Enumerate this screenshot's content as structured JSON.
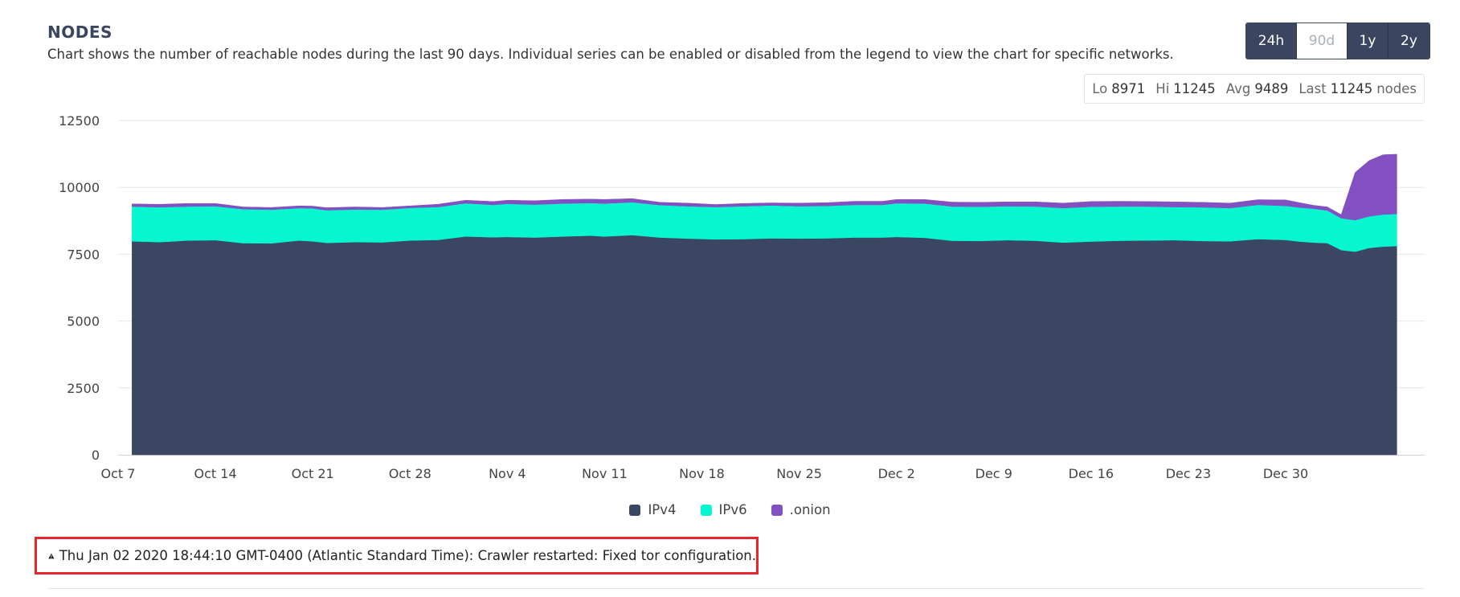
{
  "header": {
    "title": "NODES",
    "subtitle": "Chart shows the number of reachable nodes during the last 90 days. Individual series can be enabled or disabled from the legend to view the chart for specific networks."
  },
  "ranges": [
    {
      "label": "24h",
      "active": true
    },
    {
      "label": "90d",
      "active": false
    },
    {
      "label": "1y",
      "active": true
    },
    {
      "label": "2y",
      "active": true
    }
  ],
  "stats": {
    "lo_label": "Lo",
    "lo": "8971",
    "hi_label": "Hi",
    "hi": "11245",
    "avg_label": "Avg",
    "avg": "9489",
    "last_label": "Last",
    "last": "11245",
    "unit": "nodes"
  },
  "notice": {
    "icon": "warning-icon",
    "text": "Thu Jan 02 2020 18:44:10 GMT-0400 (Atlantic Standard Time): Crawler restarted: Fixed tor configuration."
  },
  "chart_data": {
    "type": "area",
    "stacked": true,
    "x_start": "Oct 7",
    "x_end_day": 94,
    "ylim": [
      0,
      12500
    ],
    "yticks": [
      0,
      2500,
      5000,
      7500,
      10000,
      12500
    ],
    "xticks": [
      {
        "label": "Oct 7",
        "day": 0
      },
      {
        "label": "Oct 14",
        "day": 7
      },
      {
        "label": "Oct 21",
        "day": 14
      },
      {
        "label": "Oct 28",
        "day": 21
      },
      {
        "label": "Nov 4",
        "day": 28
      },
      {
        "label": "Nov 11",
        "day": 35
      },
      {
        "label": "Nov 18",
        "day": 42
      },
      {
        "label": "Nov 25",
        "day": 49
      },
      {
        "label": "Dec 2",
        "day": 56
      },
      {
        "label": "Dec 9",
        "day": 63
      },
      {
        "label": "Dec 16",
        "day": 70
      },
      {
        "label": "Dec 23",
        "day": 77
      },
      {
        "label": "Dec 30",
        "day": 84
      }
    ],
    "grid": true,
    "legend_position": "bottom-center",
    "x": [
      1,
      3,
      5,
      7,
      9,
      11,
      13,
      14,
      15,
      17,
      19,
      21,
      23,
      25,
      27,
      28,
      30,
      32,
      34,
      35,
      37,
      39,
      41,
      43,
      45,
      47,
      49,
      51,
      53,
      55,
      56,
      58,
      60,
      62,
      64,
      66,
      68,
      70,
      72,
      74,
      76,
      78,
      80,
      82,
      84,
      85,
      86,
      87,
      88,
      89,
      90,
      91,
      92
    ],
    "series": [
      {
        "name": "IPv4",
        "color": "#3b4762",
        "values": [
          7970,
          7940,
          8000,
          8010,
          7900,
          7890,
          8000,
          7970,
          7910,
          7940,
          7930,
          8000,
          8020,
          8150,
          8120,
          8130,
          8110,
          8150,
          8180,
          8150,
          8200,
          8110,
          8070,
          8040,
          8050,
          8080,
          8070,
          8080,
          8110,
          8110,
          8130,
          8100,
          7990,
          7980,
          8010,
          7990,
          7920,
          7960,
          7990,
          8000,
          8010,
          7980,
          7970,
          8050,
          8020,
          7960,
          7920,
          7900,
          7640,
          7580,
          7720,
          7770,
          7790
        ]
      },
      {
        "name": "IPv6",
        "color": "#06f7d0",
        "values": [
          1300,
          1300,
          1270,
          1270,
          1270,
          1260,
          1210,
          1230,
          1220,
          1220,
          1220,
          1220,
          1230,
          1240,
          1210,
          1240,
          1230,
          1230,
          1220,
          1230,
          1230,
          1210,
          1210,
          1210,
          1230,
          1230,
          1210,
          1210,
          1220,
          1220,
          1260,
          1280,
          1280,
          1280,
          1270,
          1280,
          1290,
          1300,
          1280,
          1270,
          1240,
          1260,
          1240,
          1280,
          1270,
          1270,
          1270,
          1220,
          1190,
          1180,
          1180,
          1200,
          1200
        ]
      },
      {
        "name": ".onion",
        "color": "#8350c2",
        "values": [
          110,
          130,
          130,
          120,
          100,
          100,
          100,
          100,
          110,
          110,
          100,
          90,
          120,
          130,
          140,
          150,
          160,
          170,
          160,
          170,
          150,
          120,
          130,
          110,
          120,
          110,
          130,
          140,
          150,
          150,
          160,
          170,
          180,
          180,
          180,
          190,
          200,
          210,
          210,
          200,
          210,
          200,
          200,
          210,
          240,
          200,
          140,
          150,
          150,
          1800,
          2100,
          2250,
          2250
        ]
      }
    ]
  }
}
